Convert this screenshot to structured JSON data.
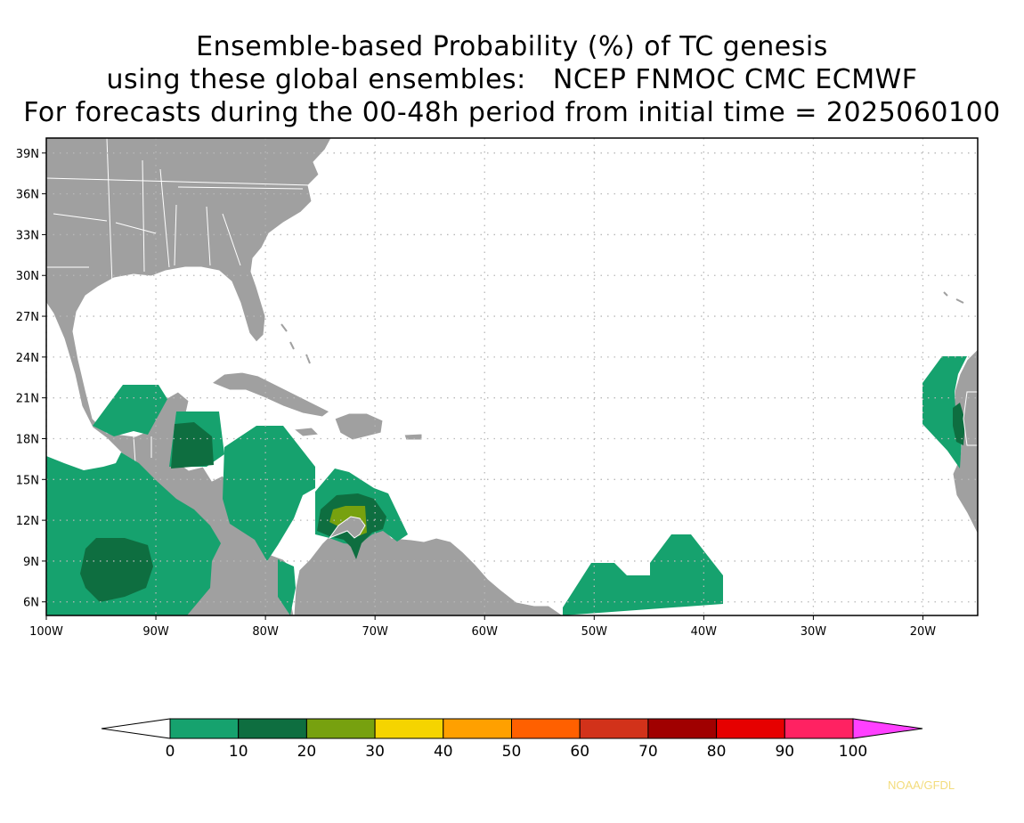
{
  "title_lines": [
    "Ensemble-based Probability (%) of TC genesis",
    "using these global ensembles:   NCEP FNMOC CMC ECMWF",
    "For forecasts during the 00-48h period from initial time = 2025060100"
  ],
  "axes": {
    "lat_labels": [
      "39N",
      "36N",
      "33N",
      "30N",
      "27N",
      "24N",
      "21N",
      "18N",
      "15N",
      "12N",
      "9N",
      "6N"
    ],
    "lat_values": [
      39,
      36,
      33,
      30,
      27,
      24,
      21,
      18,
      15,
      12,
      9,
      6
    ],
    "lon_labels": [
      "100W",
      "90W",
      "80W",
      "70W",
      "60W",
      "50W",
      "40W",
      "30W",
      "20W"
    ],
    "lon_values": [
      -100,
      -90,
      -80,
      -70,
      -60,
      -50,
      -40,
      -30,
      -20
    ],
    "lat_range": [
      5,
      40.1
    ],
    "lon_range": [
      -100,
      -15
    ],
    "gridlines": "dotted"
  },
  "colorbar": {
    "labels": [
      "0",
      "10",
      "20",
      "30",
      "40",
      "50",
      "60",
      "70",
      "80",
      "90",
      "100"
    ],
    "colors": [
      "#16a26e",
      "#0e6e40",
      "#77a10f",
      "#f5d400",
      "#ffa000",
      "#ff6000",
      "#d2321a",
      "#a00000",
      "#e60000",
      "#ff2262"
    ],
    "over_color": "#ff40ff",
    "under_color": "#ffffff"
  },
  "colors": {
    "land": "#a0a0a0",
    "ocean": "#ffffff",
    "borders": "#ffffff"
  },
  "credit": "NOAA/GFDL"
}
